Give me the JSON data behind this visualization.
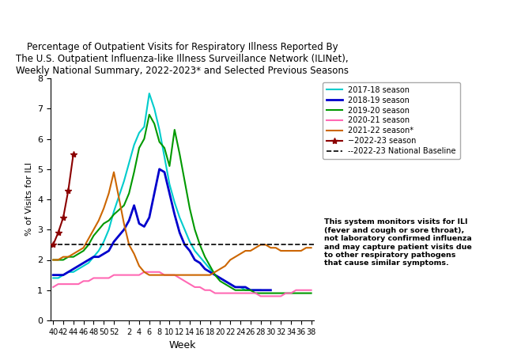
{
  "title": "Percentage of Outpatient Visits for Respiratory Illness Reported By\nThe U.S. Outpatient Influenza-like Illness Surveillance Network (ILINet),\nWeekly National Summary, 2022-2023* and Selected Previous Seasons",
  "xlabel": "Week",
  "ylabel": "% of Visits for ILI",
  "ylim": [
    0,
    8
  ],
  "baseline": 2.5,
  "annotation_text": "This system monitors visits for ILI\n(fever and cough or sore throat),\nnot laboratory confirmed influenza\nand may capture patient visits due\nto other respiratory pathogens\nthat cause similar symptoms.",
  "x_ticks": [
    40,
    42,
    44,
    46,
    48,
    50,
    52,
    2,
    4,
    6,
    8,
    10,
    12,
    14,
    16,
    18,
    20,
    22,
    24,
    26,
    28,
    30,
    32,
    34,
    36,
    38
  ],
  "seasons": {
    "2017-18": {
      "color": "#00CCCC",
      "x": [
        40,
        41,
        42,
        43,
        44,
        45,
        46,
        47,
        48,
        49,
        50,
        51,
        52,
        1,
        2,
        3,
        4,
        5,
        6,
        7,
        8,
        9,
        10,
        11,
        12,
        13,
        14,
        15,
        16,
        17,
        18,
        19,
        20,
        21,
        22,
        23,
        24,
        25,
        26,
        27,
        28
      ],
      "y": [
        1.4,
        1.4,
        1.5,
        1.6,
        1.6,
        1.7,
        1.8,
        1.9,
        2.1,
        2.3,
        2.6,
        3.0,
        3.6,
        4.6,
        5.2,
        5.8,
        6.2,
        6.4,
        7.5,
        7.0,
        6.3,
        5.4,
        4.5,
        3.9,
        3.4,
        3.0,
        2.6,
        2.3,
        2.1,
        1.9,
        1.7,
        1.5,
        1.4,
        1.3,
        1.2,
        1.1,
        1.1,
        1.0,
        1.0,
        1.0,
        1.0
      ]
    },
    "2018-19": {
      "color": "#0000CC",
      "x": [
        40,
        41,
        42,
        43,
        44,
        45,
        46,
        47,
        48,
        49,
        50,
        51,
        52,
        1,
        2,
        3,
        4,
        5,
        6,
        7,
        8,
        9,
        10,
        11,
        12,
        13,
        14,
        15,
        16,
        17,
        18,
        19,
        20,
        21,
        22,
        23,
        24,
        25,
        26,
        27,
        28,
        29,
        30
      ],
      "y": [
        1.5,
        1.5,
        1.5,
        1.6,
        1.7,
        1.8,
        1.9,
        2.0,
        2.1,
        2.1,
        2.2,
        2.3,
        2.6,
        3.0,
        3.3,
        3.8,
        3.2,
        3.1,
        3.4,
        4.2,
        5.0,
        4.9,
        4.2,
        3.5,
        2.9,
        2.5,
        2.3,
        2.0,
        1.9,
        1.7,
        1.6,
        1.5,
        1.4,
        1.3,
        1.2,
        1.1,
        1.1,
        1.1,
        1.0,
        1.0,
        1.0,
        1.0,
        1.0
      ]
    },
    "2019-20": {
      "color": "#009900",
      "x": [
        40,
        41,
        42,
        43,
        44,
        45,
        46,
        47,
        48,
        49,
        50,
        51,
        52,
        1,
        2,
        3,
        4,
        5,
        6,
        7,
        8,
        9,
        10,
        11,
        12,
        13,
        14,
        15,
        16,
        17,
        18,
        19,
        20,
        21,
        22,
        23,
        24,
        25,
        26,
        27,
        28,
        29,
        30,
        31,
        32,
        33,
        34,
        35,
        36,
        37,
        38
      ],
      "y": [
        2.0,
        2.0,
        2.0,
        2.1,
        2.1,
        2.2,
        2.3,
        2.5,
        2.8,
        3.0,
        3.2,
        3.3,
        3.5,
        3.8,
        4.2,
        4.9,
        5.7,
        6.0,
        6.8,
        6.5,
        5.9,
        5.7,
        5.1,
        6.3,
        5.5,
        4.6,
        3.7,
        3.0,
        2.5,
        2.1,
        1.8,
        1.5,
        1.3,
        1.2,
        1.1,
        1.0,
        1.0,
        1.0,
        1.0,
        0.9,
        0.9,
        0.9,
        0.9,
        0.9,
        0.9,
        0.9,
        0.9,
        0.9,
        0.9,
        0.9,
        0.9
      ]
    },
    "2020-21": {
      "color": "#FF69B4",
      "x": [
        40,
        41,
        42,
        43,
        44,
        45,
        46,
        47,
        48,
        49,
        50,
        51,
        52,
        1,
        2,
        3,
        4,
        5,
        6,
        7,
        8,
        9,
        10,
        11,
        12,
        13,
        14,
        15,
        16,
        17,
        18,
        19,
        20,
        21,
        22,
        23,
        24,
        25,
        26,
        27,
        28,
        29,
        30,
        31,
        32,
        33,
        34,
        35,
        36,
        37,
        38
      ],
      "y": [
        1.1,
        1.2,
        1.2,
        1.2,
        1.2,
        1.2,
        1.3,
        1.3,
        1.4,
        1.4,
        1.4,
        1.4,
        1.5,
        1.5,
        1.5,
        1.5,
        1.5,
        1.6,
        1.6,
        1.6,
        1.6,
        1.5,
        1.5,
        1.5,
        1.4,
        1.3,
        1.2,
        1.1,
        1.1,
        1.0,
        1.0,
        0.9,
        0.9,
        0.9,
        0.9,
        0.9,
        0.9,
        0.9,
        0.9,
        0.9,
        0.8,
        0.8,
        0.8,
        0.8,
        0.8,
        0.9,
        0.9,
        1.0,
        1.0,
        1.0,
        1.0
      ]
    },
    "2021-22": {
      "color": "#CC6600",
      "x": [
        40,
        41,
        42,
        43,
        44,
        45,
        46,
        47,
        48,
        49,
        50,
        51,
        52,
        1,
        2,
        3,
        4,
        5,
        6,
        7,
        8,
        9,
        10,
        11,
        12,
        13,
        14,
        15,
        16,
        17,
        18,
        19,
        20,
        21,
        22,
        23,
        24,
        25,
        26,
        27,
        28,
        29,
        30,
        31,
        32,
        33,
        34,
        35,
        36,
        37,
        38
      ],
      "y": [
        2.0,
        2.0,
        2.1,
        2.1,
        2.2,
        2.3,
        2.4,
        2.7,
        3.0,
        3.3,
        3.7,
        4.2,
        4.9,
        3.2,
        2.5,
        2.2,
        1.8,
        1.6,
        1.5,
        1.5,
        1.5,
        1.5,
        1.5,
        1.5,
        1.5,
        1.5,
        1.5,
        1.5,
        1.5,
        1.5,
        1.5,
        1.6,
        1.7,
        1.8,
        2.0,
        2.1,
        2.2,
        2.3,
        2.3,
        2.4,
        2.5,
        2.5,
        2.4,
        2.4,
        2.3,
        2.3,
        2.3,
        2.3,
        2.3,
        2.4,
        2.4
      ]
    },
    "2022-23": {
      "color": "#8B0000",
      "x": [
        40,
        41,
        42,
        43,
        44
      ],
      "y": [
        2.5,
        2.9,
        3.4,
        4.3,
        5.5
      ]
    }
  }
}
